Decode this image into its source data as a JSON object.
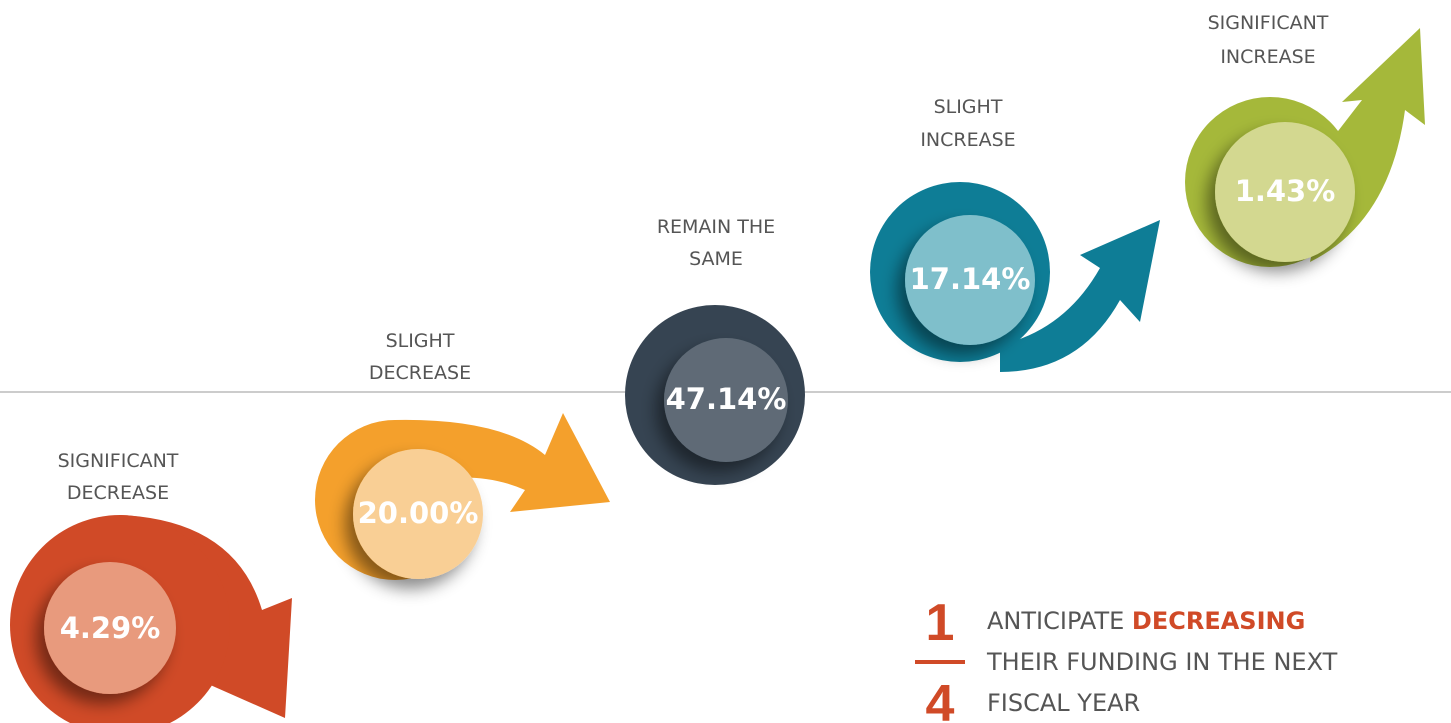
{
  "items": [
    {
      "label_lines": [
        "SIGNIFICANT",
        "DECREASE"
      ],
      "value": "4.29%"
    },
    {
      "label_lines": [
        "SLIGHT",
        "DECREASE"
      ],
      "value": "20.00%"
    },
    {
      "label_lines": [
        "REMAIN THE",
        "SAME"
      ],
      "value": "47.14%"
    },
    {
      "label_lines": [
        "SLIGHT",
        "INCREASE"
      ],
      "value": "17.14%"
    },
    {
      "label_lines": [
        "SIGNIFICANT",
        "INCREASE"
      ],
      "value": "1.43%"
    }
  ],
  "callout": {
    "numerator": "1",
    "denominator": "4",
    "lead": "ANTICIPATE",
    "emphasis": "DECREASING",
    "rest": [
      "THEIR FUNDING IN THE NEXT",
      "FISCAL YEAR"
    ]
  }
}
